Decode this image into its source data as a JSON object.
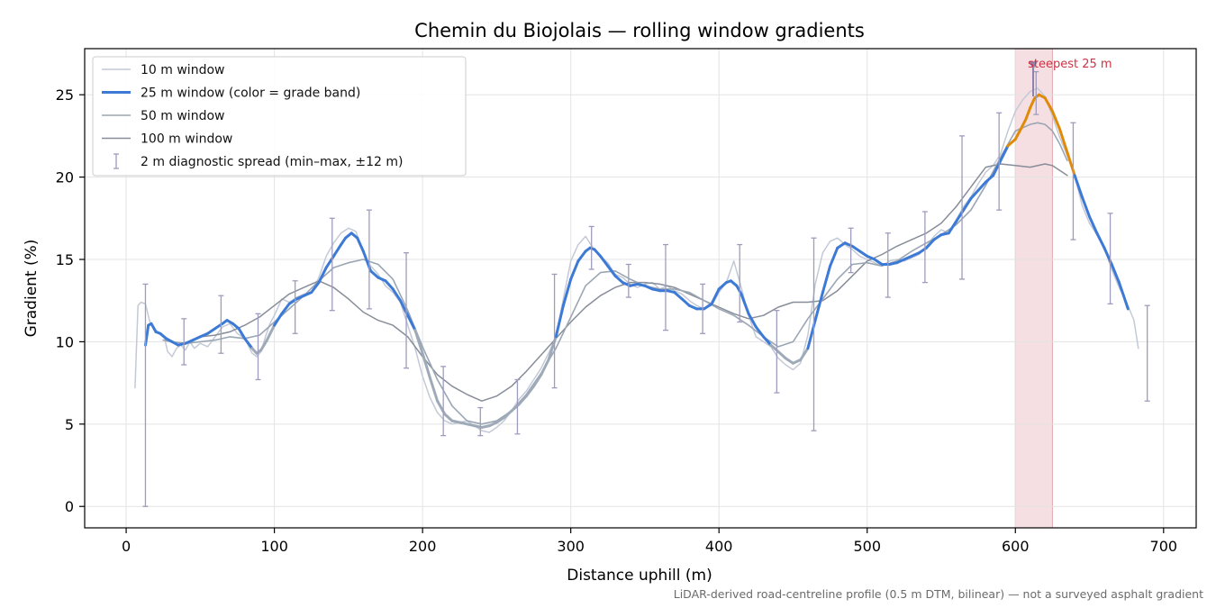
{
  "chart_data": {
    "type": "line",
    "title": "Chemin du Biojolais — rolling window gradients",
    "xlabel": "Distance uphill (m)",
    "ylabel": "Gradient (%)",
    "xlim": [
      -28,
      722
    ],
    "ylim": [
      -1.3,
      27.8
    ],
    "xticks": [
      0,
      100,
      200,
      300,
      400,
      500,
      600,
      700
    ],
    "yticks": [
      0,
      5,
      10,
      15,
      20,
      25
    ],
    "grid": true,
    "legend_position": "top-left",
    "footnote": "LiDAR-derived road-centreline profile (0.5 m DTM, bilinear) — not a surveyed asphalt gradient",
    "colors": {
      "w10": "#c3c9d6",
      "w25": "#3d7ad6",
      "w25_transition": "#9eaab8",
      "w25_steep": "#e08a0a",
      "w50": "#9ba6b4",
      "w100": "#878d99",
      "spread": "#9e9cbc",
      "highlight_fill": "#f2d4d8",
      "highlight_edge": "#e3a7b0",
      "annotation": "#cc3344",
      "marker": "#8f83ad",
      "grid": "#e3e3e3"
    },
    "series": [
      {
        "name": "10 m window",
        "x": [
          6,
          8,
          10,
          13,
          16,
          18,
          20,
          23,
          26,
          28,
          31,
          34,
          37,
          40,
          43,
          46,
          50,
          55,
          60,
          65,
          70,
          75,
          80,
          85,
          88,
          91,
          94,
          97,
          100,
          105,
          110,
          115,
          120,
          125,
          130,
          135,
          140,
          145,
          150,
          155,
          160,
          165,
          170,
          175,
          180,
          185,
          190,
          195,
          200,
          205,
          210,
          215,
          220,
          225,
          230,
          235,
          240,
          245,
          250,
          255,
          260,
          265,
          270,
          275,
          280,
          285,
          290,
          295,
          300,
          305,
          310,
          315,
          320,
          325,
          330,
          335,
          340,
          345,
          350,
          355,
          360,
          365,
          370,
          375,
          380,
          385,
          390,
          395,
          400,
          405,
          410,
          415,
          420,
          425,
          430,
          435,
          440,
          445,
          450,
          455,
          460,
          465,
          470,
          475,
          480,
          485,
          490,
          495,
          500,
          505,
          510,
          515,
          520,
          525,
          530,
          535,
          540,
          545,
          550,
          555,
          560,
          565,
          570,
          575,
          580,
          585,
          590,
          595,
          600,
          605,
          610,
          615,
          620,
          625,
          630,
          635,
          640,
          645,
          650,
          655,
          660,
          665,
          670,
          675,
          680,
          683
        ],
        "y": [
          7.2,
          12.2,
          12.4,
          12.3,
          11.2,
          11.0,
          10.7,
          10.5,
          10.2,
          9.4,
          9.1,
          9.6,
          9.8,
          9.5,
          10.0,
          9.6,
          9.9,
          9.7,
          10.3,
          10.9,
          11.1,
          10.5,
          10.2,
          9.3,
          9.1,
          9.4,
          10.3,
          11.1,
          11.6,
          12.6,
          12.4,
          12.7,
          12.9,
          13.0,
          13.9,
          15.2,
          16.0,
          16.6,
          16.9,
          16.7,
          15.4,
          14.6,
          14.1,
          13.4,
          13.0,
          12.4,
          11.0,
          9.6,
          7.9,
          6.6,
          5.7,
          5.2,
          5.0,
          5.1,
          5.2,
          4.9,
          4.6,
          4.5,
          4.8,
          5.2,
          5.8,
          6.5,
          7.0,
          7.7,
          8.4,
          9.3,
          10.3,
          12.6,
          14.9,
          15.9,
          16.4,
          15.7,
          15.2,
          14.8,
          14.1,
          13.9,
          13.5,
          13.3,
          13.5,
          13.6,
          13.2,
          13.4,
          13.1,
          12.9,
          12.5,
          12.2,
          12.0,
          12.2,
          13.0,
          13.6,
          14.9,
          13.3,
          11.6,
          10.3,
          10.0,
          9.7,
          9.0,
          8.6,
          8.3,
          8.7,
          10.4,
          13.5,
          15.4,
          16.1,
          16.3,
          15.9,
          15.6,
          15.2,
          15.0,
          14.8,
          14.6,
          14.9,
          15.0,
          14.9,
          15.1,
          15.3,
          15.8,
          16.4,
          16.8,
          16.6,
          17.4,
          18.2,
          18.8,
          19.6,
          20.3,
          20.7,
          21.4,
          22.8,
          24.0,
          24.7,
          25.2,
          25.4,
          24.9,
          23.7,
          22.4,
          21.3,
          20.1,
          18.3,
          17.2,
          16.5,
          15.7,
          14.4,
          13.3,
          12.4,
          11.3,
          9.6
        ]
      },
      {
        "name": "25 m window (color = grade band)",
        "x": [
          13,
          15,
          17,
          20,
          23,
          27,
          31,
          35,
          40,
          45,
          50,
          55,
          60,
          65,
          68,
          72,
          76,
          80,
          85,
          88,
          91,
          95,
          100,
          105,
          110,
          115,
          120,
          125,
          130,
          135,
          140,
          145,
          148,
          152,
          156,
          160,
          165,
          170,
          175,
          180,
          185,
          190,
          195,
          200,
          205,
          210,
          215,
          220,
          225,
          230,
          235,
          240,
          245,
          250,
          255,
          260,
          265,
          270,
          275,
          280,
          285,
          290,
          295,
          300,
          305,
          310,
          313,
          316,
          320,
          325,
          330,
          335,
          340,
          345,
          350,
          355,
          360,
          365,
          370,
          375,
          380,
          385,
          390,
          395,
          400,
          405,
          408,
          412,
          415,
          420,
          425,
          430,
          435,
          440,
          445,
          450,
          455,
          460,
          465,
          470,
          475,
          480,
          485,
          490,
          495,
          500,
          505,
          510,
          515,
          520,
          525,
          530,
          535,
          540,
          545,
          550,
          555,
          560,
          565,
          570,
          575,
          580,
          585,
          590,
          595,
          600,
          603,
          607,
          610,
          613,
          616,
          620,
          625,
          630,
          635,
          640,
          645,
          650,
          655,
          660,
          665,
          670,
          673,
          676
        ],
        "y": [
          9.8,
          11.0,
          11.1,
          10.6,
          10.5,
          10.2,
          10.0,
          9.8,
          9.9,
          10.1,
          10.3,
          10.5,
          10.8,
          11.1,
          11.3,
          11.1,
          10.8,
          10.2,
          9.6,
          9.3,
          9.5,
          10.1,
          11.0,
          11.7,
          12.3,
          12.6,
          12.8,
          13.0,
          13.6,
          14.5,
          15.2,
          15.9,
          16.3,
          16.6,
          16.3,
          15.5,
          14.3,
          13.9,
          13.7,
          13.2,
          12.5,
          11.6,
          10.7,
          9.3,
          7.8,
          6.4,
          5.6,
          5.2,
          5.1,
          5.0,
          4.9,
          4.8,
          4.9,
          5.1,
          5.4,
          5.8,
          6.2,
          6.7,
          7.3,
          8.0,
          8.9,
          10.3,
          12.2,
          13.8,
          14.9,
          15.5,
          15.7,
          15.6,
          15.2,
          14.6,
          14.0,
          13.6,
          13.4,
          13.5,
          13.4,
          13.2,
          13.1,
          13.1,
          13.0,
          12.6,
          12.2,
          12.0,
          12.0,
          12.3,
          13.2,
          13.6,
          13.7,
          13.4,
          12.9,
          11.7,
          10.9,
          10.3,
          9.8,
          9.4,
          9.0,
          8.7,
          8.9,
          9.6,
          11.3,
          13.0,
          14.6,
          15.7,
          16.0,
          15.8,
          15.5,
          15.2,
          15.0,
          14.7,
          14.7,
          14.8,
          15.0,
          15.2,
          15.4,
          15.7,
          16.2,
          16.5,
          16.6,
          17.3,
          18.0,
          18.7,
          19.2,
          19.7,
          20.1,
          21.0,
          21.9,
          22.3,
          22.8,
          23.5,
          24.2,
          24.8,
          25.0,
          24.8,
          24.0,
          22.9,
          21.5,
          20.1,
          18.8,
          17.6,
          16.6,
          15.7,
          14.7,
          13.6,
          12.8,
          12.0
        ],
        "steep_band_x_range": [
          597,
          640
        ],
        "transition_bands": [
          [
            85,
            100
          ],
          [
            194,
            214
          ],
          [
            214,
            260
          ],
          [
            262,
            290
          ],
          [
            433,
            459
          ]
        ]
      },
      {
        "name": "50 m window",
        "x": [
          25,
          30,
          40,
          50,
          60,
          70,
          80,
          90,
          100,
          110,
          120,
          130,
          140,
          150,
          160,
          170,
          180,
          190,
          200,
          210,
          220,
          230,
          240,
          250,
          260,
          270,
          280,
          290,
          300,
          310,
          320,
          330,
          340,
          350,
          360,
          370,
          380,
          390,
          400,
          410,
          420,
          430,
          440,
          450,
          460,
          470,
          480,
          490,
          500,
          510,
          520,
          530,
          540,
          550,
          560,
          570,
          580,
          590,
          600,
          610,
          615,
          620,
          625,
          630,
          635
        ],
        "y": [
          10.1,
          10.0,
          9.9,
          10.0,
          10.1,
          10.3,
          10.2,
          10.4,
          11.2,
          12.0,
          12.8,
          13.7,
          14.5,
          14.8,
          15.0,
          14.7,
          13.8,
          11.9,
          9.7,
          7.7,
          6.1,
          5.2,
          5.0,
          5.2,
          5.8,
          6.8,
          8.1,
          9.6,
          11.5,
          13.4,
          14.2,
          14.3,
          13.8,
          13.4,
          13.2,
          13.2,
          13.0,
          12.5,
          12.0,
          11.6,
          11.0,
          10.3,
          9.7,
          10.0,
          11.4,
          12.6,
          13.8,
          14.7,
          14.8,
          14.6,
          14.9,
          15.5,
          16.0,
          16.5,
          17.1,
          18.0,
          19.5,
          21.2,
          22.8,
          23.2,
          23.3,
          23.2,
          22.8,
          22.0,
          21.0
        ]
      },
      {
        "name": "100 m window",
        "x": [
          50,
          60,
          70,
          80,
          90,
          100,
          110,
          120,
          130,
          140,
          150,
          160,
          170,
          180,
          190,
          200,
          210,
          220,
          230,
          240,
          250,
          260,
          270,
          280,
          290,
          300,
          310,
          320,
          330,
          340,
          350,
          360,
          370,
          380,
          390,
          400,
          410,
          420,
          430,
          440,
          450,
          460,
          470,
          480,
          490,
          500,
          510,
          520,
          530,
          540,
          550,
          560,
          570,
          580,
          590,
          600,
          610,
          620,
          625,
          630,
          635
        ],
        "y": [
          10.3,
          10.4,
          10.6,
          11.0,
          11.5,
          12.2,
          12.9,
          13.3,
          13.7,
          13.3,
          12.6,
          11.8,
          11.3,
          11.0,
          10.3,
          9.1,
          8.0,
          7.3,
          6.8,
          6.4,
          6.7,
          7.3,
          8.2,
          9.2,
          10.2,
          11.2,
          12.1,
          12.8,
          13.3,
          13.6,
          13.6,
          13.5,
          13.3,
          12.9,
          12.5,
          12.1,
          11.7,
          11.4,
          11.6,
          12.1,
          12.4,
          12.4,
          12.5,
          13.1,
          14.0,
          14.9,
          15.3,
          15.8,
          16.2,
          16.6,
          17.2,
          18.2,
          19.4,
          20.6,
          20.8,
          20.7,
          20.6,
          20.8,
          20.7,
          20.4,
          20.1
        ]
      }
    ],
    "spread": {
      "name": "2 m diagnostic spread (min–max, ±12 m)",
      "x": [
        13,
        39,
        64,
        89,
        114,
        139,
        164,
        189,
        214,
        239,
        264,
        289,
        314,
        339,
        364,
        389,
        414,
        439,
        464,
        489,
        514,
        539,
        564,
        589,
        614,
        639,
        664,
        689
      ],
      "y_min": [
        0.0,
        8.6,
        9.3,
        7.7,
        10.5,
        11.9,
        12.0,
        8.4,
        4.3,
        4.3,
        4.4,
        7.2,
        14.4,
        12.7,
        10.7,
        10.5,
        11.2,
        6.9,
        4.6,
        14.2,
        12.7,
        13.6,
        13.8,
        18.0,
        23.8,
        16.2,
        12.3,
        6.4
      ],
      "y_max": [
        13.5,
        11.4,
        12.8,
        11.7,
        13.7,
        17.5,
        18.0,
        15.4,
        8.5,
        6.0,
        7.7,
        14.1,
        17.0,
        14.7,
        15.9,
        13.5,
        15.9,
        11.9,
        16.3,
        16.9,
        16.6,
        17.9,
        22.5,
        23.9,
        26.4,
        23.3,
        17.8,
        12.2
      ]
    },
    "highlight": {
      "label": "steepest 25 m",
      "x_start": 600,
      "x_end": 625,
      "peak_x": 612,
      "peak_y": 26.8
    }
  }
}
